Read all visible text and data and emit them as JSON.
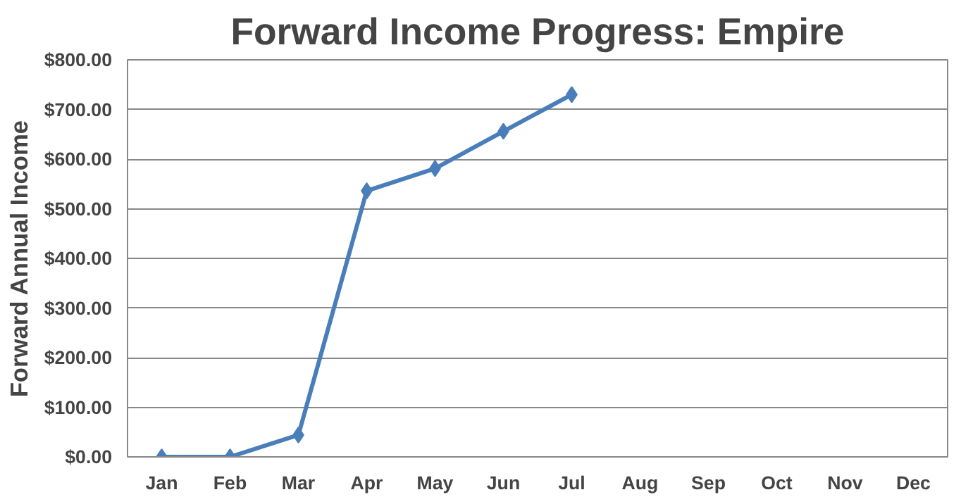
{
  "chart_data": {
    "type": "line",
    "title": "Forward Income Progress: Empire",
    "ylabel": "Forward Annual Income",
    "categories": [
      "Jan",
      "Feb",
      "Mar",
      "Apr",
      "May",
      "Jun",
      "Jul",
      "Aug",
      "Sep",
      "Oct",
      "Nov",
      "Dec"
    ],
    "series": [
      {
        "color": "#4a7ebb",
        "values": [
          0,
          0,
          44,
          536,
          581,
          656,
          730,
          null,
          null,
          null,
          null,
          null
        ]
      }
    ],
    "ylim": [
      0,
      800
    ],
    "yticks": [
      {
        "value": 0,
        "label": "$0.00"
      },
      {
        "value": 100,
        "label": "$100.00"
      },
      {
        "value": 200,
        "label": "$200.00"
      },
      {
        "value": 300,
        "label": "$300.00"
      },
      {
        "value": 400,
        "label": "$400.00"
      },
      {
        "value": 500,
        "label": "$500.00"
      },
      {
        "value": 600,
        "label": "$600.00"
      },
      {
        "value": 700,
        "label": "$700.00"
      },
      {
        "value": 800,
        "label": "$800.00"
      }
    ],
    "grid": "y",
    "marker": "diamond",
    "line_style": "solid"
  }
}
